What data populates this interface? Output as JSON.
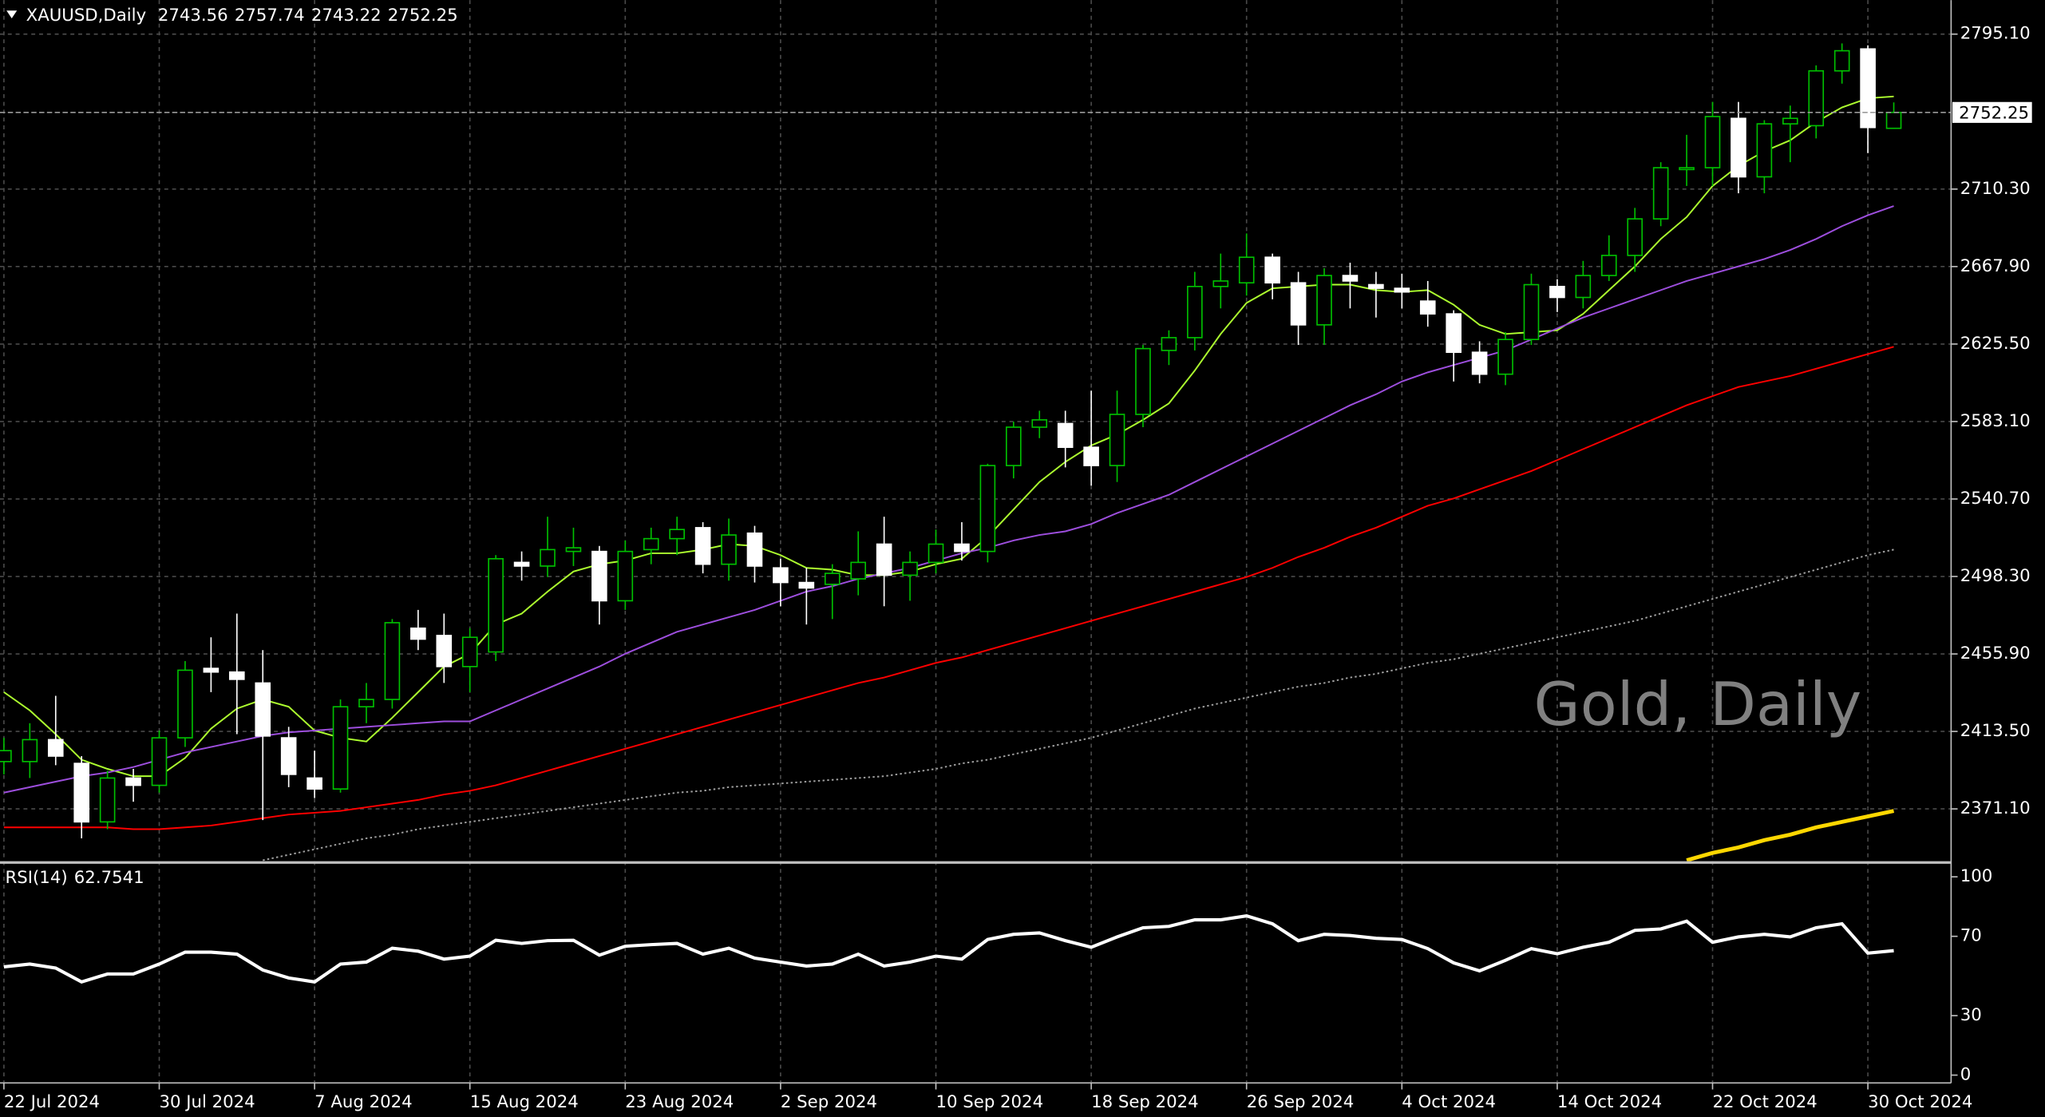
{
  "header": {
    "symbol": "XAUUSD,Daily",
    "ohlc": [
      2743.56,
      2757.74,
      2743.22,
      2752.25
    ]
  },
  "watermark": "Gold, Daily",
  "last_price": 2752.25,
  "chart_data": [
    {
      "type": "candlestick",
      "categories": [
        "22 Jul 2024",
        null,
        null,
        null,
        null,
        null,
        "30 Jul 2024",
        null,
        null,
        null,
        null,
        null,
        "7 Aug 2024",
        null,
        null,
        null,
        null,
        null,
        "15 Aug 2024",
        null,
        null,
        null,
        null,
        null,
        "23 Aug 2024",
        null,
        null,
        null,
        null,
        null,
        "2 Sep 2024",
        null,
        null,
        null,
        null,
        null,
        "10 Sep 2024",
        null,
        null,
        null,
        null,
        null,
        "18 Sep 2024",
        null,
        null,
        null,
        null,
        null,
        "26 Sep 2024",
        null,
        null,
        null,
        null,
        null,
        "4 Oct 2024",
        null,
        null,
        null,
        null,
        null,
        "14 Oct 2024",
        null,
        null,
        null,
        null,
        null,
        "22 Oct 2024",
        null,
        null,
        null,
        null,
        null,
        "30 Oct 2024",
        null
      ],
      "open": [
        2397,
        2397,
        2409,
        2396,
        2364,
        2388,
        2384,
        2410,
        2448,
        2446,
        2440,
        2410,
        2388,
        2382,
        2427,
        2431,
        2470,
        2466,
        2449,
        2457,
        2506,
        2504,
        2512,
        2512,
        2485,
        2513,
        2519,
        2525,
        2505,
        2522,
        2503,
        2495,
        2494,
        2497,
        2516,
        2499,
        2506,
        2516,
        2512,
        2559,
        2580,
        2582,
        2569,
        2559,
        2587,
        2622,
        2629,
        2657,
        2659,
        2673,
        2659,
        2636,
        2663,
        2658,
        2656,
        2649,
        2642,
        2621,
        2609,
        2628,
        2657,
        2651,
        2663,
        2674,
        2694,
        2721,
        2722,
        2749,
        2717,
        2746,
        2745,
        2775,
        2787,
        2743.56
      ],
      "high": [
        2410,
        2418,
        2433,
        2400,
        2392,
        2393,
        2414,
        2452,
        2465,
        2478,
        2458,
        2416,
        2403,
        2431,
        2440,
        2475,
        2480,
        2478,
        2470,
        2510,
        2512,
        2531,
        2525,
        2515,
        2518,
        2525,
        2531,
        2528,
        2530,
        2526,
        2508,
        2503,
        2505,
        2523,
        2531,
        2512,
        2524,
        2528,
        2560,
        2583,
        2589,
        2589,
        2600,
        2600,
        2625,
        2633,
        2665,
        2675,
        2686,
        2675,
        2665,
        2667,
        2670,
        2665,
        2664,
        2660,
        2644,
        2627,
        2632,
        2664,
        2661,
        2671,
        2685,
        2700,
        2725,
        2740,
        2758,
        2758,
        2748,
        2756,
        2778,
        2790,
        2789,
        2757.74
      ],
      "low": [
        2390,
        2388,
        2395,
        2355,
        2360,
        2375,
        2380,
        2405,
        2435,
        2412,
        2365,
        2383,
        2377,
        2380,
        2418,
        2426,
        2458,
        2440,
        2435,
        2452,
        2496,
        2498,
        2504,
        2472,
        2480,
        2505,
        2510,
        2500,
        2496,
        2495,
        2482,
        2472,
        2475,
        2488,
        2482,
        2485,
        2500,
        2507,
        2506,
        2552,
        2574,
        2558,
        2548,
        2550,
        2580,
        2614,
        2622,
        2645,
        2652,
        2650,
        2625,
        2625,
        2645,
        2640,
        2645,
        2635,
        2605,
        2604,
        2603,
        2625,
        2643,
        2645,
        2660,
        2665,
        2690,
        2712,
        2712,
        2708,
        2708,
        2725,
        2738,
        2768,
        2730,
        2743.22
      ],
      "close": [
        2403,
        2409,
        2400,
        2364,
        2388,
        2384,
        2410,
        2447,
        2446,
        2442,
        2411,
        2390,
        2382,
        2427,
        2431,
        2473,
        2464,
        2449,
        2465,
        2508,
        2504,
        2513,
        2514,
        2485,
        2512,
        2519,
        2524,
        2505,
        2521,
        2504,
        2495,
        2492,
        2500,
        2506,
        2499,
        2506,
        2516,
        2512,
        2559,
        2580,
        2584,
        2569,
        2559,
        2587,
        2623,
        2629,
        2657,
        2660,
        2673,
        2659,
        2636,
        2663,
        2660,
        2656,
        2654,
        2642,
        2621,
        2609,
        2628,
        2658,
        2651,
        2663,
        2674,
        2694,
        2722,
        2722,
        2750,
        2717,
        2746,
        2749,
        2775,
        2786,
        2744,
        2752.25
      ],
      "up_color": "#00c000",
      "down_color": "#ffffff",
      "series": [
        {
          "color": "#adff2f",
          "line_style": "solid",
          "values": [
            2435,
            2425,
            2412,
            2398,
            2393,
            2389,
            2389,
            2399,
            2415,
            2426,
            2431,
            2427,
            2414,
            2410,
            2408,
            2421,
            2435,
            2449,
            2456,
            2472,
            2478,
            2490,
            2501,
            2505,
            2507,
            2511,
            2511,
            2513,
            2516,
            2515,
            2510,
            2503,
            2502,
            2499,
            2499,
            2501,
            2505,
            2508,
            2520,
            2535,
            2550,
            2561,
            2570,
            2576,
            2584,
            2593,
            2611,
            2631,
            2648,
            2656,
            2657,
            2658,
            2658,
            2655,
            2654,
            2655,
            2647,
            2636,
            2631,
            2632,
            2633,
            2642,
            2655,
            2668,
            2683,
            2695,
            2712,
            2723,
            2731,
            2737,
            2747,
            2755,
            2760,
            2761
          ]
        },
        {
          "color": "#9d4edd",
          "line_style": "solid",
          "values": [
            2380,
            2383,
            2386,
            2389,
            2391,
            2394,
            2398,
            2402,
            2405,
            2408,
            2411,
            2413,
            2414,
            2415,
            2416,
            2417,
            2418,
            2419,
            2419,
            2425,
            2431,
            2437,
            2443,
            2449,
            2456,
            2462,
            2468,
            2472,
            2476,
            2480,
            2485,
            2490,
            2493,
            2497,
            2500,
            2503,
            2507,
            2511,
            2514,
            2518,
            2521,
            2523,
            2527,
            2533,
            2538,
            2543,
            2550,
            2557,
            2564,
            2571,
            2578,
            2585,
            2592,
            2598,
            2605,
            2610,
            2614,
            2618,
            2622,
            2628,
            2634,
            2640,
            2645,
            2650,
            2655,
            2660,
            2664,
            2668,
            2672,
            2677,
            2683,
            2690,
            2696,
            2701
          ]
        },
        {
          "color": "#ff0000",
          "line_style": "solid",
          "values": [
            2361,
            2361,
            2361,
            2361,
            2361,
            2360,
            2360,
            2361,
            2362,
            2364,
            2366,
            2368,
            2369,
            2370,
            2372,
            2374,
            2376,
            2379,
            2381,
            2384,
            2388,
            2392,
            2396,
            2400,
            2404,
            2408,
            2412,
            2416,
            2420,
            2424,
            2428,
            2432,
            2436,
            2440,
            2443,
            2447,
            2451,
            2454,
            2458,
            2462,
            2466,
            2470,
            2474,
            2478,
            2482,
            2486,
            2490,
            2494,
            2498,
            2503,
            2509,
            2514,
            2520,
            2525,
            2531,
            2537,
            2541,
            2546,
            2551,
            2556,
            2562,
            2568,
            2574,
            2580,
            2586,
            2592,
            2597,
            2602,
            2605,
            2608,
            2612,
            2616,
            2620,
            2624
          ]
        },
        {
          "color": "#a0a0a0",
          "line_style": "dotted",
          "values": [
            null,
            null,
            null,
            null,
            null,
            null,
            null,
            null,
            null,
            null,
            2343,
            2346,
            2349,
            2352,
            2355,
            2357,
            2360,
            2362,
            2364,
            2366,
            2368,
            2370,
            2372,
            2374,
            2376,
            2378,
            2380,
            2381,
            2383,
            2384,
            2385,
            2386,
            2387,
            2388,
            2389,
            2391,
            2393,
            2396,
            2398,
            2401,
            2404,
            2407,
            2410,
            2414,
            2418,
            2422,
            2426,
            2429,
            2432,
            2435,
            2438,
            2440,
            2443,
            2445,
            2448,
            2451,
            2453,
            2456,
            2459,
            2462,
            2465,
            2468,
            2471,
            2474,
            2478,
            2482,
            2486,
            2490,
            2494,
            2498,
            2502,
            2506,
            2510,
            2513
          ]
        },
        {
          "color": "#ffd700",
          "line_style": "thick",
          "values": [
            null,
            null,
            null,
            null,
            null,
            null,
            null,
            null,
            null,
            null,
            null,
            null,
            null,
            null,
            null,
            null,
            null,
            null,
            null,
            null,
            null,
            null,
            null,
            null,
            null,
            null,
            null,
            null,
            null,
            null,
            null,
            null,
            null,
            null,
            null,
            null,
            null,
            null,
            null,
            null,
            null,
            null,
            null,
            null,
            null,
            null,
            null,
            null,
            null,
            null,
            null,
            null,
            null,
            null,
            null,
            null,
            null,
            null,
            null,
            null,
            null,
            null,
            null,
            null,
            null,
            2343,
            2347,
            2350,
            2354,
            2357,
            2361,
            2364,
            2367,
            2370
          ]
        }
      ],
      "ylim": [
        2342.5,
        2813.7
      ],
      "yticks": [
        {
          "value": 2371.1,
          "label": "2371.10"
        },
        {
          "value": 2413.5,
          "label": "2413.50"
        },
        {
          "value": 2455.9,
          "label": "2455.90"
        },
        {
          "value": 2498.3,
          "label": "2498.30"
        },
        {
          "value": 2540.7,
          "label": "2540.70"
        },
        {
          "value": 2583.1,
          "label": "2583.10"
        },
        {
          "value": 2625.5,
          "label": "2625.50"
        },
        {
          "value": 2667.9,
          "label": "2667.90"
        },
        {
          "value": 2710.3,
          "label": "2710.30"
        },
        {
          "value": 2795.1,
          "label": "2795.10"
        }
      ],
      "grid": true
    },
    {
      "type": "line",
      "title": "RSI(14)",
      "color": "#ffffff",
      "values": [
        54.6,
        56,
        54,
        47,
        51,
        51,
        56,
        62,
        62,
        61,
        53,
        49,
        47,
        56,
        57,
        64,
        62.5,
        58.5,
        60,
        68,
        66.4,
        67.8,
        68,
        60.5,
        65,
        65.8,
        66.4,
        61,
        64,
        59,
        57,
        55,
        56,
        61,
        55,
        57,
        60,
        58.5,
        68.4,
        71,
        71.7,
        67.8,
        64.5,
        69.7,
        74.3,
        75,
        78.3,
        78.3,
        80.3,
        76.3,
        67.8,
        71,
        70.4,
        69,
        68.4,
        63.8,
        56.6,
        52.6,
        57.9,
        63.8,
        61.2,
        64.5,
        67,
        73,
        73.7,
        77.6,
        67,
        69.7,
        71,
        69.7,
        74.3,
        76.3,
        61.5,
        62.7541
      ],
      "ylim": [
        0,
        100
      ],
      "yticks": [
        0,
        30,
        70,
        100
      ]
    }
  ]
}
